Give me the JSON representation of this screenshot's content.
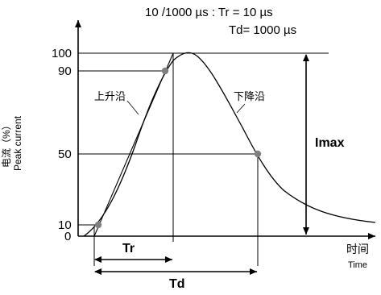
{
  "title": {
    "line1": "10 /1000 µs : Tr = 10 µs",
    "line2": "Td= 1000 µs"
  },
  "y_axis": {
    "label_cn": "电流（%）",
    "label_en": "Peak current",
    "ticks": [
      "100",
      "90",
      "50",
      "10",
      "0"
    ]
  },
  "x_axis": {
    "label_cn": "时间",
    "label_en": "Time"
  },
  "annotations": {
    "rising_edge": "上升沿",
    "falling_edge": "下降沿",
    "imax": "Imax",
    "tr": "Tr",
    "td": "Td"
  },
  "colors": {
    "line": "#000000",
    "marker": "#808080"
  }
}
